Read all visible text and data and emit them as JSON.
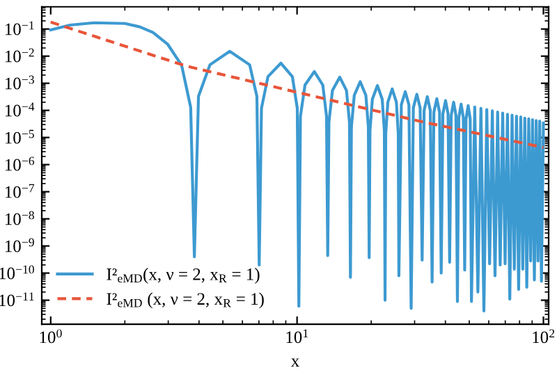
{
  "chart_data": {
    "type": "line",
    "xlabel": "x",
    "series": [
      {
        "name": "I²$_{eMD}$(x, ν = 2, x$_{R}$ = 1)",
        "color": "#3d9ad1",
        "line_style": "solid",
        "x": [
          1.0,
          1.2,
          1.5,
          2.0,
          2.3,
          2.6,
          2.98,
          3.4,
          3.7,
          3.83,
          3.98,
          4.43,
          5.33,
          6.42,
          6.87,
          7.02,
          7.17,
          7.62,
          8.6,
          9.57,
          10.02,
          10.17,
          10.32,
          10.77,
          11.75,
          12.72,
          13.17,
          13.32,
          13.47,
          13.92,
          14.9,
          15.87,
          16.32,
          16.47,
          16.62,
          17.07,
          18.05,
          19.02,
          19.47,
          19.62,
          19.77,
          20.22,
          21.19,
          22.16,
          22.61,
          22.76,
          22.91,
          23.36,
          24.33,
          25.3,
          25.75,
          25.9,
          26.5,
          27.49,
          28.45,
          29.05,
          29.65,
          30.63,
          31.59,
          32.19,
          32.79,
          33.78,
          34.73,
          35.33,
          35.93,
          36.92,
          37.87,
          38.47,
          39.07,
          40.06,
          41.02,
          41.62,
          42.22,
          43.2,
          44.16,
          44.76,
          45.36,
          46.35,
          47.3,
          47.9,
          48.5,
          49.49,
          50.44,
          51.04,
          52.63,
          54.19,
          55.76,
          57.33,
          58.9,
          60.47,
          62.04,
          63.61,
          65.18,
          66.75,
          68.33,
          69.9,
          71.47,
          73.04,
          74.61,
          76.18,
          77.75,
          79.32,
          80.89,
          82.46,
          84.03,
          85.6,
          87.17,
          88.75,
          90.32,
          91.89,
          93.46,
          95.03,
          96.6,
          98.17,
          100
        ],
        "values": [
          0.093,
          0.14,
          0.17,
          0.16,
          0.12,
          0.075,
          0.028,
          0.0046,
          0.00013,
          4e-10,
          0.00033,
          0.0048,
          0.015,
          0.0048,
          0.00033,
          2e-10,
          0.00012,
          0.00176,
          0.0055,
          0.00176,
          0.00012,
          6e-12,
          6e-05,
          0.00086,
          0.0027,
          0.00086,
          6e-05,
          4.4e-10,
          3.7e-05,
          0.00054,
          0.00168,
          0.00054,
          3.7e-05,
          7e-11,
          2.5e-05,
          0.00036,
          0.00114,
          0.00036,
          2.5e-05,
          3.7e-10,
          1.8e-05,
          0.00026,
          0.00082,
          0.00026,
          1.8e-05,
          1e-11,
          1.4e-05,
          0.0002,
          0.00062,
          0.0002,
          1.4e-05,
          8e-11,
          0.00016,
          0.00049,
          0.00016,
          5e-12,
          0.000125,
          0.00039,
          0.000125,
          3e-10,
          0.0001,
          0.00032,
          0.0001,
          4.7e-11,
          8.6e-05,
          0.00027,
          8.6e-05,
          1e-10,
          7.4e-05,
          0.00023,
          7.4e-05,
          2.5e-10,
          6.4e-05,
          0.0002,
          6.4e-05,
          9e-12,
          5.4e-05,
          0.00017,
          5.4e-05,
          1.3e-10,
          4.8e-05,
          0.00015,
          4.8e-05,
          9e-12,
          0.000134,
          2e-11,
          0.000119,
          4e-12,
          0.000107,
          2.2e-10,
          9.6e-05,
          8e-11,
          8.7e-05,
          2e-10,
          7.9e-05,
          2.2e-10,
          7.2e-05,
          1.1e-11,
          6.6e-05,
          1.4e-10,
          6.1e-05,
          2.5e-11,
          5.7e-05,
          1.4e-10,
          5.2e-05,
          3e-11,
          4.9e-05,
          2.8e-10,
          4.5e-05,
          5.6e-11,
          4.2e-05,
          2.8e-10,
          4e-05,
          5e-11,
          3.4e-05
        ]
      },
      {
        "name": "I²$_{eMD}$ (x, ν = 2, x$_{R}$ = 1)",
        "color": "#e8553a",
        "line_style": "dashed",
        "x": [
          1,
          3.55,
          10.5,
          31,
          100
        ],
        "values": [
          0.18,
          0.0043,
          0.00042,
          4.1e-05,
          4.3e-06
        ]
      }
    ],
    "log": "xy",
    "xlim": [
      0.92,
      105
    ],
    "ylim": [
      1.3e-12,
      0.66
    ],
    "xticks": [
      {
        "value": 1,
        "label": "10$^{0}$"
      },
      {
        "value": 10,
        "label": "10$^{1}$"
      },
      {
        "value": 100,
        "label": "10$^{2}$"
      }
    ],
    "yticks": [
      {
        "value": 1e-11,
        "label": "10$^{−11}$"
      },
      {
        "value": 1e-10,
        "label": "10$^{−10}$"
      },
      {
        "value": 1e-09,
        "label": "10$^{−9}$"
      },
      {
        "value": 1e-08,
        "label": "10$^{−8}$"
      },
      {
        "value": 1e-07,
        "label": "10$^{−7}$"
      },
      {
        "value": 1e-06,
        "label": "10$^{−6}$"
      },
      {
        "value": 1e-05,
        "label": "10$^{−5}$"
      },
      {
        "value": 0.0001,
        "label": "10$^{−4}$"
      },
      {
        "value": 0.001,
        "label": "10$^{−3}$"
      },
      {
        "value": 0.01,
        "label": "10$^{−2}$"
      },
      {
        "value": 0.1,
        "label": "10$^{−1}$"
      }
    ],
    "grid": false,
    "legend": "lower left"
  }
}
